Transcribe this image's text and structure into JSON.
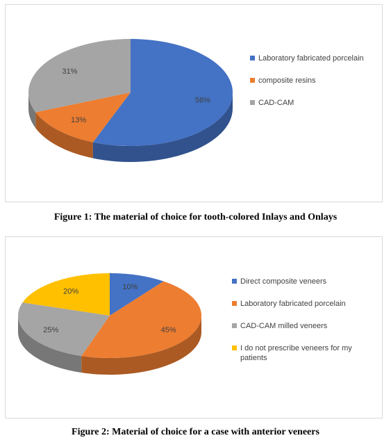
{
  "chart_data": [
    {
      "type": "pie",
      "title": "",
      "categories": [
        "Laboratory fabricated porcelain",
        "composite resins",
        "CAD-CAM"
      ],
      "values": [
        56,
        13,
        31
      ],
      "labels": [
        "56%",
        "13%",
        "31%"
      ],
      "colors": [
        "#4472c4",
        "#ed7d31",
        "#a5a5a5"
      ],
      "legend_position": "right",
      "caption": "Figure 1: The material of choice for tooth-colored Inlays and Onlays"
    },
    {
      "type": "pie",
      "title": "",
      "categories": [
        "Direct composite veneers",
        "Laboratory fabricated porcelain",
        "CAD-CAM milled veneers",
        "I do not prescribe veneers for my patients"
      ],
      "legend_lines": [
        [
          "Direct composite veneers"
        ],
        [
          "Laboratory fabricated porcelain"
        ],
        [
          "CAD-CAM milled veneers"
        ],
        [
          "I do not prescribe veneers for my",
          "patients"
        ]
      ],
      "values": [
        10,
        45,
        25,
        20
      ],
      "labels": [
        "10%",
        "45%",
        "25%",
        "20%"
      ],
      "colors": [
        "#4472c4",
        "#ed7d31",
        "#a5a5a5",
        "#ffc000"
      ],
      "legend_position": "right",
      "caption": "Figure 2: Material of choice for a case with anterior veneers"
    }
  ]
}
